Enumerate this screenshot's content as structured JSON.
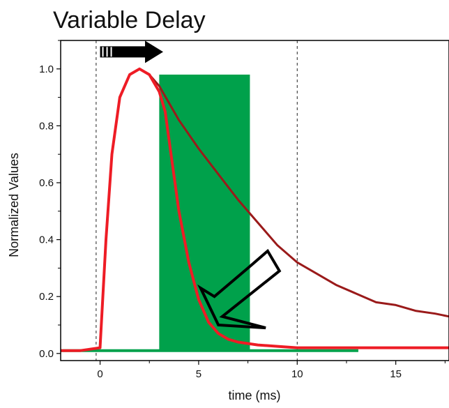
{
  "chart_data": {
    "type": "line",
    "title": "Variable Delay",
    "xlabel": "time (ms)",
    "ylabel": "Normalized Values",
    "xlim": [
      -2,
      17.7
    ],
    "ylim": [
      -0.025,
      1.1
    ],
    "x_ticks": [
      0,
      5,
      10,
      15
    ],
    "x_tick_labels": [
      "0",
      "5",
      "10",
      "15"
    ],
    "y_ticks": [
      0.0,
      0.2,
      0.4,
      0.6,
      0.8,
      1.0
    ],
    "y_tick_labels": [
      "0.0",
      "0.2",
      "0.4",
      "0.6",
      "0.8",
      "1.0"
    ],
    "grid": false,
    "legend": "none",
    "vertical_dashed_lines_x": [
      -0.2,
      10.0
    ],
    "colors": {
      "green": "#00a14b",
      "bright_red": "#ee1c25",
      "dark_red": "#9a1a1a",
      "arrow": "#000000"
    },
    "series": [
      {
        "color": "#00a14b",
        "style": "pulse-band",
        "x": [
          -2,
          3.0,
          3.0,
          7.6,
          7.6,
          13.1
        ],
        "y": [
          0.01,
          0.01,
          0.98,
          0.98,
          0.01,
          0.01
        ]
      },
      {
        "color": "#9a1a1a",
        "x": [
          -2,
          -1,
          0.0,
          0.3,
          0.6,
          1.0,
          1.5,
          2.0,
          2.5,
          3.0,
          3.5,
          4.0,
          5.0,
          6.0,
          7.0,
          8.0,
          9.0,
          10.0,
          11.0,
          12.0,
          13.0,
          14.0,
          15.0,
          16.0,
          17.0,
          17.7
        ],
        "y": [
          0.01,
          0.01,
          0.02,
          0.4,
          0.7,
          0.9,
          0.98,
          1.0,
          0.98,
          0.94,
          0.88,
          0.82,
          0.72,
          0.63,
          0.54,
          0.46,
          0.38,
          0.32,
          0.28,
          0.24,
          0.21,
          0.18,
          0.17,
          0.15,
          0.14,
          0.13
        ]
      },
      {
        "color": "#ee1c25",
        "x": [
          -2,
          -1,
          0.0,
          0.3,
          0.6,
          1.0,
          1.5,
          2.0,
          2.5,
          3.0,
          3.3,
          3.6,
          4.0,
          4.5,
          5.0,
          5.5,
          6.0,
          6.5,
          7.0,
          8.0,
          9.0,
          10.0,
          12.0,
          14.0,
          16.0,
          17.7
        ],
        "y": [
          0.01,
          0.01,
          0.02,
          0.4,
          0.7,
          0.9,
          0.98,
          1.0,
          0.98,
          0.92,
          0.85,
          0.7,
          0.5,
          0.32,
          0.19,
          0.11,
          0.07,
          0.05,
          0.04,
          0.03,
          0.025,
          0.02,
          0.02,
          0.02,
          0.02,
          0.02
        ]
      }
    ],
    "annotations": [
      {
        "type": "arrow",
        "style": "filled",
        "color": "#000000",
        "from": [
          0.0,
          1.06
        ],
        "to": [
          3.2,
          1.06
        ]
      },
      {
        "type": "arrow",
        "style": "outline",
        "color": "#000000",
        "from": [
          8.5,
          0.33
        ],
        "to": [
          5.0,
          0.23
        ],
        "head_end": [
          6.0,
          0.09
        ]
      }
    ]
  }
}
